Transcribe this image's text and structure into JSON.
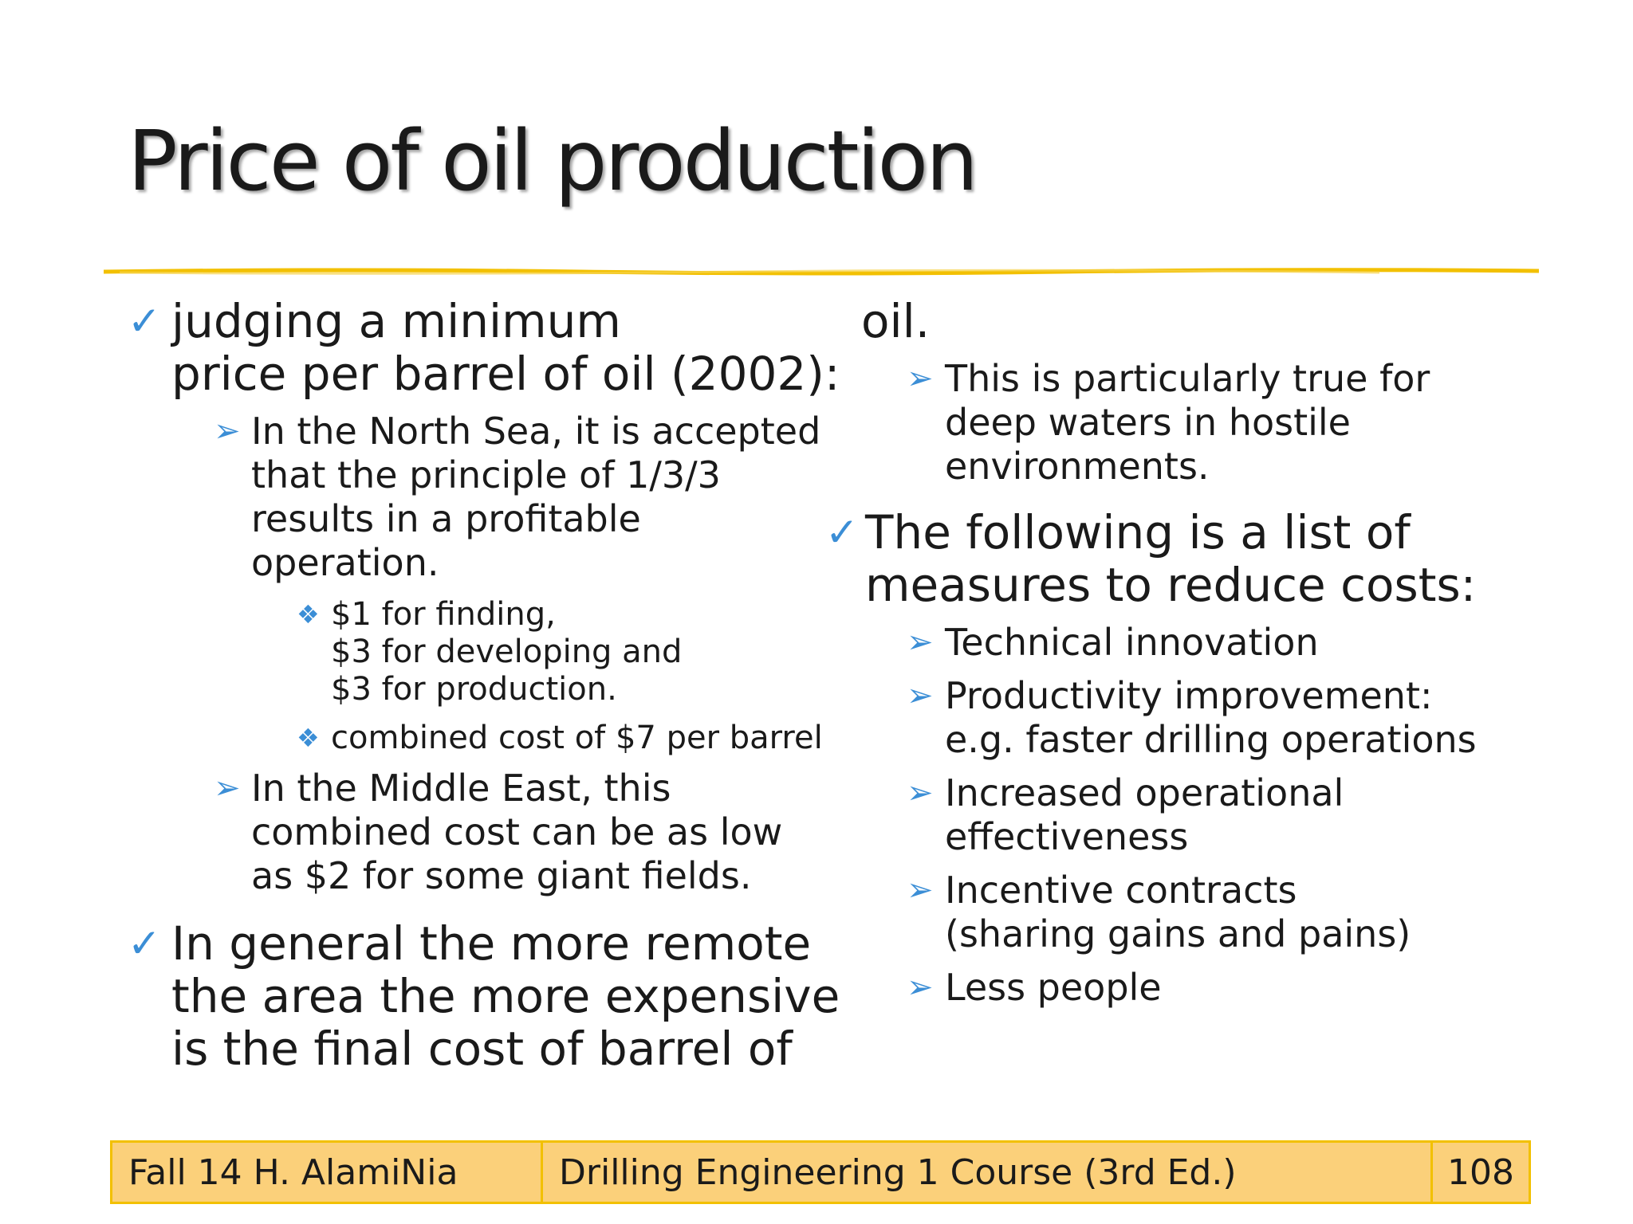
{
  "title": "Price of oil production",
  "colors": {
    "accent_line": "#f2c000",
    "bullet": "#3b8ed6",
    "footer_fill": "#fbd07a"
  },
  "icons": {
    "level1": "checkmark-icon",
    "level2": "arrow-bullet-icon",
    "level3": "diamond-cluster-icon"
  },
  "left": {
    "b1": {
      "lines": [
        "judging a minimum",
        "price per barrel of oil (2002):"
      ],
      "sub1": {
        "lines": [
          "In the North Sea, it is accepted",
          "that the principle of 1/3/3",
          "results in a profitable",
          "operation."
        ],
        "s1": [
          "$1 for finding,",
          "$3 for developing and",
          "$3 for production."
        ],
        "s2": "combined cost of $7 per barrel"
      },
      "sub2": [
        "In the Middle East, this",
        "combined cost can be as low",
        "as $2 for some giant fields."
      ]
    },
    "b2": [
      "In general the more remote",
      "the area the more expensive",
      "is the final cost of barrel of"
    ]
  },
  "right": {
    "cont": "oil.",
    "cont_sub": [
      "This is particularly true for",
      "deep waters in hostile",
      "environments."
    ],
    "b3": [
      "The following is a list of",
      "measures to reduce costs:"
    ],
    "items": {
      "i1": "Technical innovation",
      "i2": [
        "Productivity improvement:",
        "e.g. faster drilling operations"
      ],
      "i3": [
        "Increased operational",
        "effectiveness"
      ],
      "i4": [
        "Incentive contracts",
        "(sharing gains and pains)"
      ],
      "i5": "Less people"
    }
  },
  "footer": {
    "left": "Fall 14 H. AlamiNia",
    "center": "Drilling Engineering 1 Course (3rd Ed.)",
    "page": "108"
  }
}
